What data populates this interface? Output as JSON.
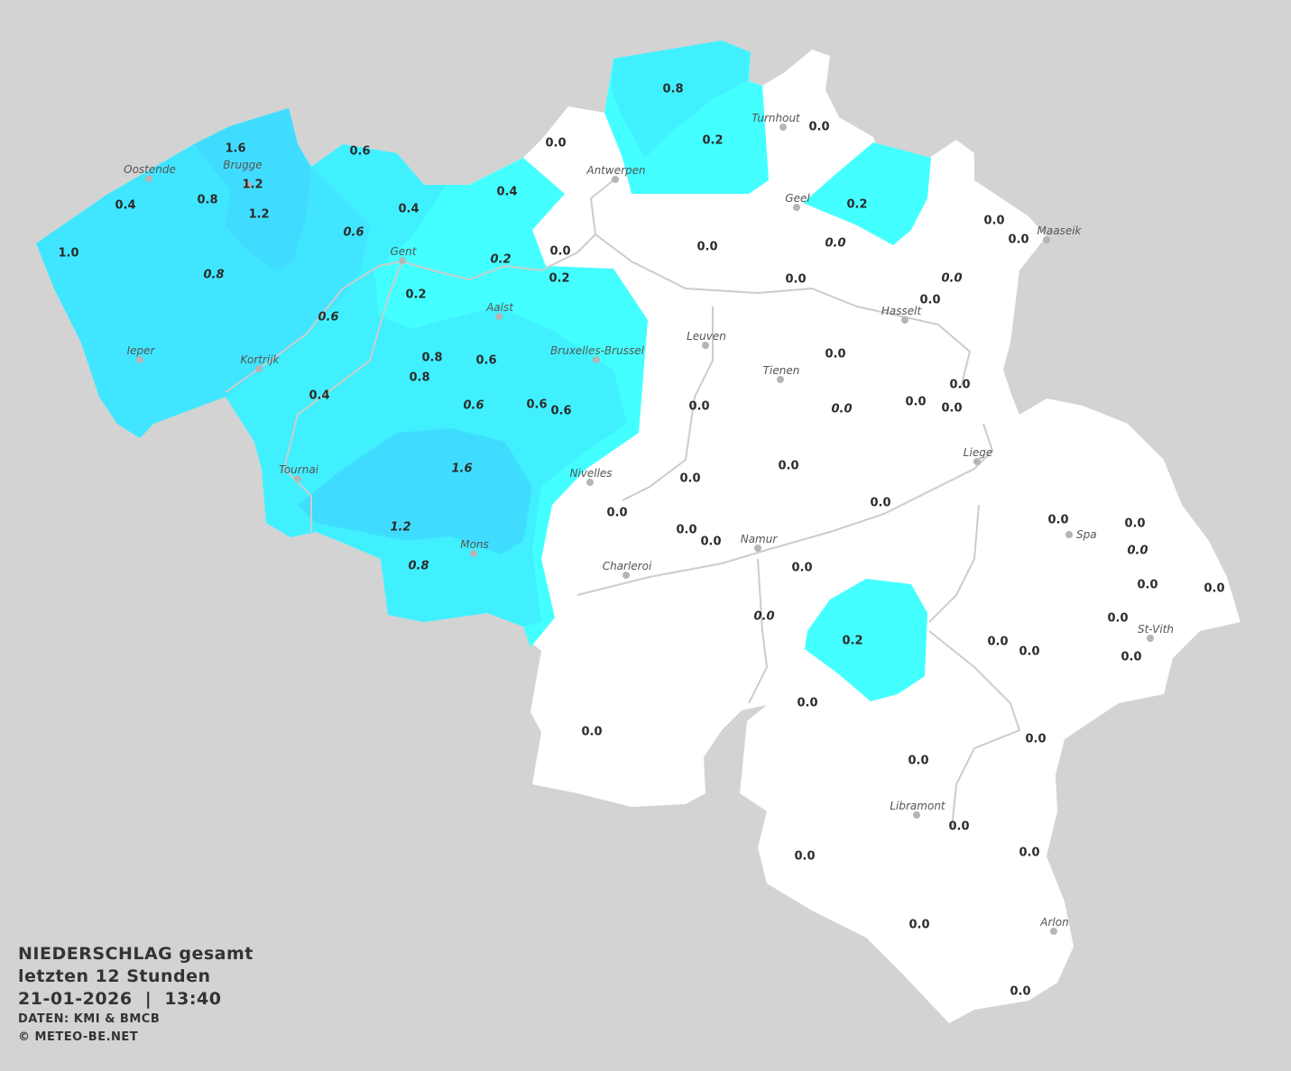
{
  "title": {
    "line1": "NIEDERSCHLAG gesamt",
    "line2": "letzten 12 Stunden",
    "line3": "21-01-2026  |  13:40",
    "source": "DATEN: KMI & BMCB",
    "copyright": "© METEO-BE.NET"
  },
  "colors": {
    "background": "#d3d3d3",
    "land": "#ffffff",
    "precip_0_2": "#44ffff",
    "precip_0_4_0_6": "#40f0ff",
    "precip_0_8_1_0": "#40e6ff",
    "precip_1_2_1_6": "#40dcff",
    "rivers": "#cccccc"
  },
  "cities": [
    "Oostende",
    "Brugge",
    "Gent",
    "Antwerpen",
    "Turnhout",
    "Geel",
    "Maaseik",
    "Hasselt",
    "Aalst",
    "Leuven",
    "Tienen",
    "Bruxelles-Brussel",
    "Ieper",
    "Kortrijk",
    "Liege",
    "Tournai",
    "Nivelles",
    "Spa",
    "Namur",
    "Mons",
    "Charleroi",
    "St-Vith",
    "Libramont",
    "Arlon"
  ],
  "values": [
    "1.6",
    "0.6",
    "1.2",
    "0.4",
    "0.8",
    "1.2",
    "0.4",
    "0.4",
    "0.0",
    "0.8",
    "0.2",
    "0.0",
    "0.2",
    "1.0",
    "0.8",
    "0.6",
    "0.2",
    "0.0",
    "0.2",
    "0.2",
    "0.6",
    "0.0",
    "0.0",
    "0.0",
    "0.0",
    "0.0",
    "0.0",
    "0.0",
    "0.8",
    "0.6",
    "0.8",
    "0.4",
    "0.6",
    "0.6",
    "0.6",
    "0.0",
    "0.0",
    "0.0",
    "0.0",
    "0.0",
    "0.0",
    "1.6",
    "0.0",
    "0.0",
    "0.0",
    "0.0",
    "1.2",
    "0.0",
    "0.0",
    "0.8",
    "0.0",
    "0.0",
    "0.0",
    "0.0",
    "0.0",
    "0.0",
    "0.0",
    "0.0",
    "0.2",
    "0.0",
    "0.0",
    "0.0",
    "0.0",
    "0.0",
    "0.0",
    "0.0",
    "0.0",
    "0.0",
    "0.0",
    "0.0",
    "0.0"
  ],
  "values_italic": [
    false,
    false,
    false,
    false,
    false,
    false,
    false,
    false,
    false,
    false,
    false,
    false,
    false,
    false,
    true,
    true,
    true,
    false,
    false,
    false,
    true,
    false,
    true,
    false,
    true,
    false,
    false,
    false,
    false,
    false,
    false,
    false,
    true,
    false,
    false,
    false,
    false,
    true,
    false,
    false,
    false,
    true,
    false,
    false,
    false,
    false,
    true,
    false,
    false,
    true,
    false,
    false,
    false,
    true,
    false,
    false,
    false,
    true,
    false,
    false,
    false,
    false,
    false,
    false,
    false,
    false,
    false,
    false,
    false,
    false,
    false
  ]
}
